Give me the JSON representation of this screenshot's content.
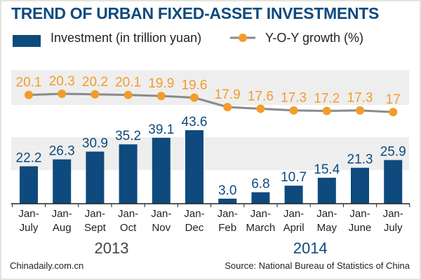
{
  "chart_data": {
    "type": "bar+line",
    "title": "TREND OF URBAN FIXED-ASSET INVESTMENTS",
    "categories": [
      "Jan-\nJuly",
      "Jan-\nAug",
      "Jan-\nSept",
      "Jan-\nOct",
      "Jan-\nNov",
      "Jan-\nDec",
      "Jan-\nFeb",
      "Jan-\nMarch",
      "Jan-\nApril",
      "Jan-\nMay",
      "Jan-\nJune",
      "Jan-\nJuly"
    ],
    "year_groups": [
      {
        "label": "2013",
        "count": 6
      },
      {
        "label": "2014",
        "count": 6
      }
    ],
    "series": [
      {
        "name": "Investment (in trillion yuan)",
        "type": "bar",
        "color": "#0e4a7e",
        "values": [
          22.2,
          26.3,
          30.9,
          35.2,
          39.1,
          43.6,
          3.0,
          6.8,
          10.7,
          15.4,
          21.3,
          25.9
        ],
        "labels": [
          "22.2",
          "26.3",
          "30.9",
          "35.2",
          "39.1",
          "43.6",
          "3.0",
          "6.8",
          "10.7",
          "15.4",
          "21.3",
          "25.9"
        ]
      },
      {
        "name": "Y-O-Y growth (%)",
        "type": "line",
        "color": "#f39c2a",
        "line_color": "#8a8a8a",
        "values": [
          20.1,
          20.3,
          20.2,
          20.1,
          19.9,
          19.6,
          17.9,
          17.6,
          17.3,
          17.2,
          17.3,
          17
        ],
        "labels": [
          "20.1",
          "20.3",
          "20.2",
          "20.1",
          "19.9",
          "19.6",
          "17.9",
          "17.6",
          "17.3",
          "17.2",
          "17.3",
          "17"
        ]
      }
    ],
    "legend": "top-left",
    "grid": false
  },
  "footer": {
    "left": "Chinadaily.com.cn",
    "right": "Source: National Bureau of Statistics of China"
  }
}
